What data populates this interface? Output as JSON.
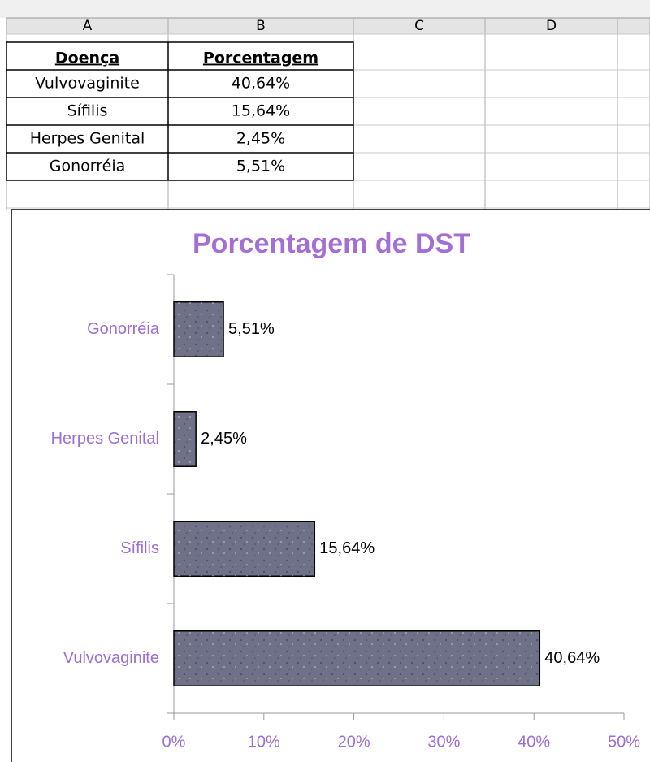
{
  "columns": [
    "A",
    "B",
    "C",
    "D"
  ],
  "table": {
    "header": [
      "Doença",
      "Porcentagem"
    ],
    "rows": [
      [
        "Vulvovaginite",
        "40,64%"
      ],
      [
        "Sífilis",
        "15,64%"
      ],
      [
        "Herpes Genital",
        "2,45%"
      ],
      [
        "Gonorréia",
        "5,51%"
      ]
    ]
  },
  "chart_data": {
    "type": "bar",
    "orientation": "horizontal",
    "title": "Porcentagem de DST",
    "categories": [
      "Vulvovaginite",
      "Sífilis",
      "Herpes Genital",
      "Gonorréia"
    ],
    "values": [
      40.64,
      15.64,
      2.45,
      5.51
    ],
    "value_labels": [
      "40,64%",
      "15,64%",
      "2,45%",
      "5,51%"
    ],
    "color": "#6e7188",
    "xlim": [
      0,
      50
    ],
    "xticks": [
      {
        "value": 0,
        "label": "0%"
      },
      {
        "value": 10,
        "label": "10%"
      },
      {
        "value": 20,
        "label": "20%"
      },
      {
        "value": 30,
        "label": "30%"
      },
      {
        "value": 40,
        "label": "40%"
      },
      {
        "value": 50,
        "label": "50%"
      }
    ]
  }
}
